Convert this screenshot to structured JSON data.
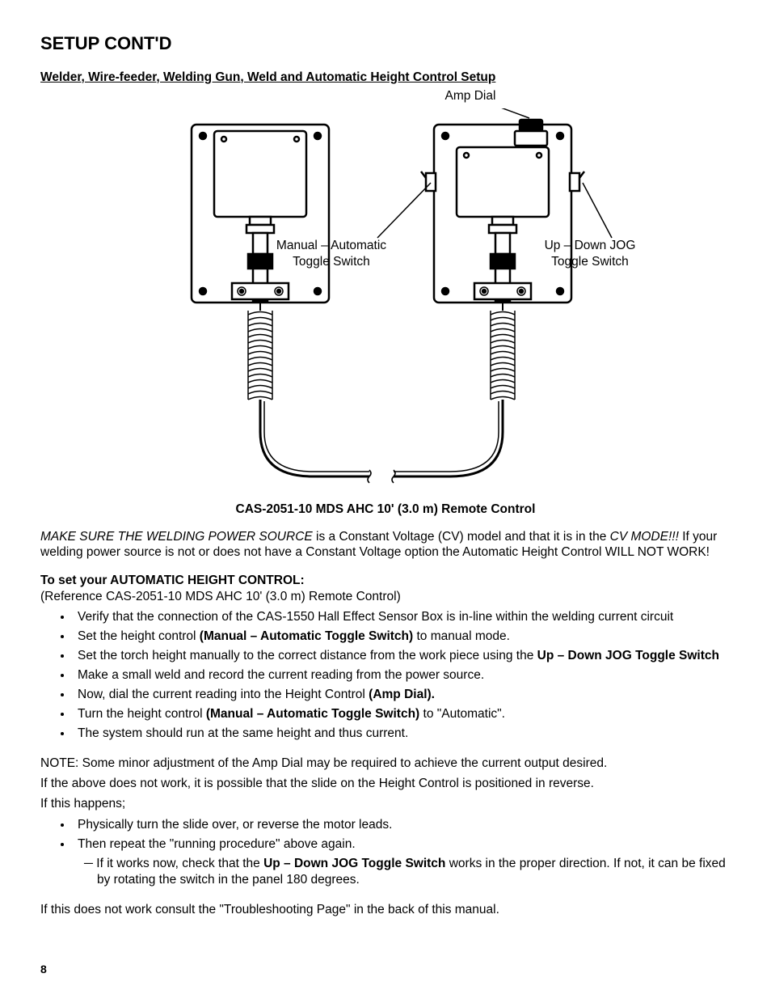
{
  "title": "SETUP CONT'D",
  "section_title": "Welder, Wire-feeder, Welding Gun, Weld and Automatic Height Control Setup",
  "diagram": {
    "top_label": "Amp Dial",
    "left_mid_label_line1": "Manual – Automatic",
    "left_mid_label_line2": "Toggle Switch",
    "right_mid_label_line1": "Up – Down JOG",
    "right_mid_label_line2": "Toggle Switch",
    "caption": "CAS-2051-10 MDS AHC 10' (3.0 m) Remote Control",
    "stroke": "#000000",
    "fill_bg": "#ffffff",
    "viewbox_w": 700,
    "viewbox_h": 480
  },
  "warn": {
    "lead_italic": "MAKE SURE THE WELDING POWER SOURCE",
    "lead_rest": " is a Constant Voltage (CV) model and that it is in the ",
    "cv_italic": "CV MODE!!!",
    "tail": "  If your welding power source is not or does not have a Constant Voltage option the Automatic Height Control WILL NOT WORK!"
  },
  "set": {
    "heading": "To set your AUTOMATIC HEIGHT CONTROL:",
    "reference": "(Reference CAS-2051-10 MDS AHC 10' (3.0 m) Remote Control)",
    "items": [
      {
        "pre": "Verify that the connection of the CAS-1550 Hall Effect Sensor Box is in-line within the welding current circuit",
        "b": "",
        "post": ""
      },
      {
        "pre": "Set the height control ",
        "b": "(Manual – Automatic Toggle Switch)",
        "post": " to manual mode."
      },
      {
        "pre": "Set the torch height manually to the correct distance from the work piece using the ",
        "b": "Up – Down JOG Toggle Switch",
        "post": ""
      },
      {
        "pre": "Make a small weld and record the current reading from the power source.",
        "b": "",
        "post": ""
      },
      {
        "pre": "Now, dial the current reading into the Height Control ",
        "b": "(Amp Dial).",
        "post": ""
      },
      {
        "pre": "Turn the height control ",
        "b": "(Manual – Automatic Toggle Switch)",
        "post": " to \"Automatic\"."
      },
      {
        "pre": "The system should run at the same height and thus current.",
        "b": "",
        "post": ""
      }
    ]
  },
  "note1": "NOTE: Some minor adjustment of the Amp Dial may be required to achieve the current output desired.",
  "note2": "If the above does not work, it is possible that the slide on the Height Control is positioned in reverse.",
  "note3": "If this happens;",
  "fix_items": [
    "Physically turn the slide over, or reverse the motor leads.",
    "Then repeat the \"running procedure\" above again."
  ],
  "sub_note": {
    "dash": "─ ",
    "pre": "If it works now, check that the ",
    "b": "Up – Down JOG Toggle Switch",
    "post": " works in the proper direction. If not, it can be fixed by rotating the switch in the panel 180 degrees."
  },
  "closing": "If this does not work consult the \"Troubleshooting Page\" in the back of this manual.",
  "page_number": "8"
}
